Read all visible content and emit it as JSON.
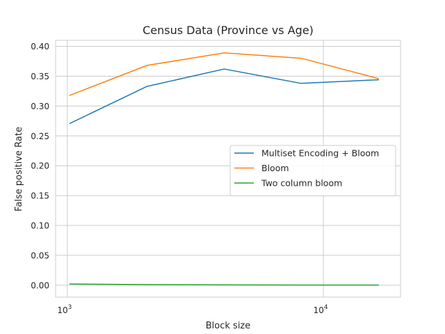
{
  "chart_data": {
    "type": "line",
    "title": "Census Data (Province vs Age)",
    "xlabel": "Block size",
    "ylabel": "False positive Rate",
    "xscale": "log",
    "xlim": [
      900,
      20000
    ],
    "ylim": [
      -0.02,
      0.41
    ],
    "x": [
      1024,
      2048,
      4096,
      8192,
      16384
    ],
    "x_ticks": [
      {
        "value": 1000,
        "base": "10",
        "exp": "3"
      },
      {
        "value": 10000,
        "base": "10",
        "exp": "4"
      }
    ],
    "y_ticks": [
      0.0,
      0.05,
      0.1,
      0.15,
      0.2,
      0.25,
      0.3,
      0.35,
      0.4
    ],
    "y_tick_labels": [
      "0.00",
      "0.05",
      "0.10",
      "0.15",
      "0.20",
      "0.25",
      "0.30",
      "0.35",
      "0.40"
    ],
    "grid": true,
    "legend_position": "center-right",
    "series": [
      {
        "name": "Multiset Encoding + Bloom",
        "color": "#1f77b4",
        "values": [
          0.271,
          0.333,
          0.362,
          0.338,
          0.344
        ]
      },
      {
        "name": "Bloom",
        "color": "#ff7f0e",
        "values": [
          0.318,
          0.368,
          0.389,
          0.38,
          0.346
        ]
      },
      {
        "name": "Two column bloom",
        "color": "#2ca02c",
        "values": [
          0.002,
          0.001,
          0.0005,
          0.0003,
          0.0003
        ]
      }
    ]
  }
}
